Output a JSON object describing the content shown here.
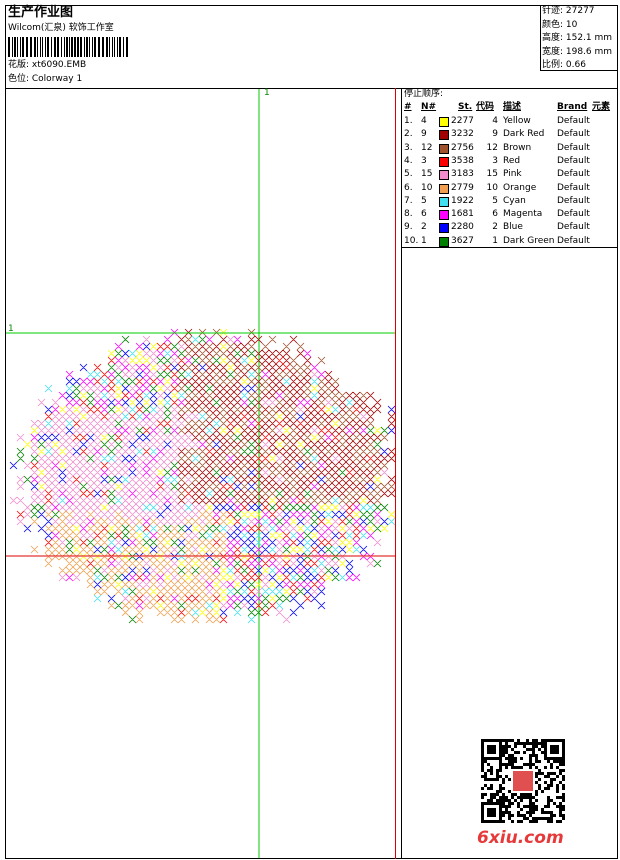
{
  "header": {
    "title": "生产作业图",
    "studio": "Wilcom(汇泉) 软饰工作室",
    "design": "花版: xt6090.EMB",
    "colorway": "色位: Colorway 1"
  },
  "info": [
    "针迹: 27277",
    "颜色: 10",
    "高度: 152.1 mm",
    "宽度: 198.6 mm",
    "比例: 0.66"
  ],
  "guides": {
    "vertical_label": "1",
    "horizontal_label": "1"
  },
  "table": {
    "caption": "停止顺序:",
    "columns": [
      "#",
      "N#",
      "St.",
      "代码",
      "描述",
      "Brand",
      "元素"
    ],
    "rows": [
      {
        "order": "1.",
        "needle": "4",
        "stitches": "2277",
        "code": "4",
        "name": "Yellow",
        "brand": "Default",
        "swatch": "#ffff00"
      },
      {
        "order": "2.",
        "needle": "9",
        "stitches": "3232",
        "code": "9",
        "name": "Dark Red",
        "brand": "Default",
        "swatch": "#a00000"
      },
      {
        "order": "3.",
        "needle": "12",
        "stitches": "2756",
        "code": "12",
        "name": "Brown",
        "brand": "Default",
        "swatch": "#a0522d"
      },
      {
        "order": "4.",
        "needle": "3",
        "stitches": "3538",
        "code": "3",
        "name": "Red",
        "brand": "Default",
        "swatch": "#ff0000"
      },
      {
        "order": "5.",
        "needle": "15",
        "stitches": "3183",
        "code": "15",
        "name": "Pink",
        "brand": "Default",
        "swatch": "#f08ccc"
      },
      {
        "order": "6.",
        "needle": "10",
        "stitches": "2779",
        "code": "10",
        "name": "Orange",
        "brand": "Default",
        "swatch": "#f0a050"
      },
      {
        "order": "7.",
        "needle": "5",
        "stitches": "1922",
        "code": "5",
        "name": "Cyan",
        "brand": "Default",
        "swatch": "#40e0f0"
      },
      {
        "order": "8.",
        "needle": "6",
        "stitches": "1681",
        "code": "6",
        "name": "Magenta",
        "brand": "Default",
        "swatch": "#ff00ff"
      },
      {
        "order": "9.",
        "needle": "2",
        "stitches": "2280",
        "code": "2",
        "name": "Blue",
        "brand": "Default",
        "swatch": "#0000ff"
      },
      {
        "order": "10.",
        "needle": "1",
        "stitches": "3627",
        "code": "1",
        "name": "Dark Green",
        "brand": "Default",
        "swatch": "#008000"
      }
    ]
  },
  "watermark": "6xiu.com"
}
